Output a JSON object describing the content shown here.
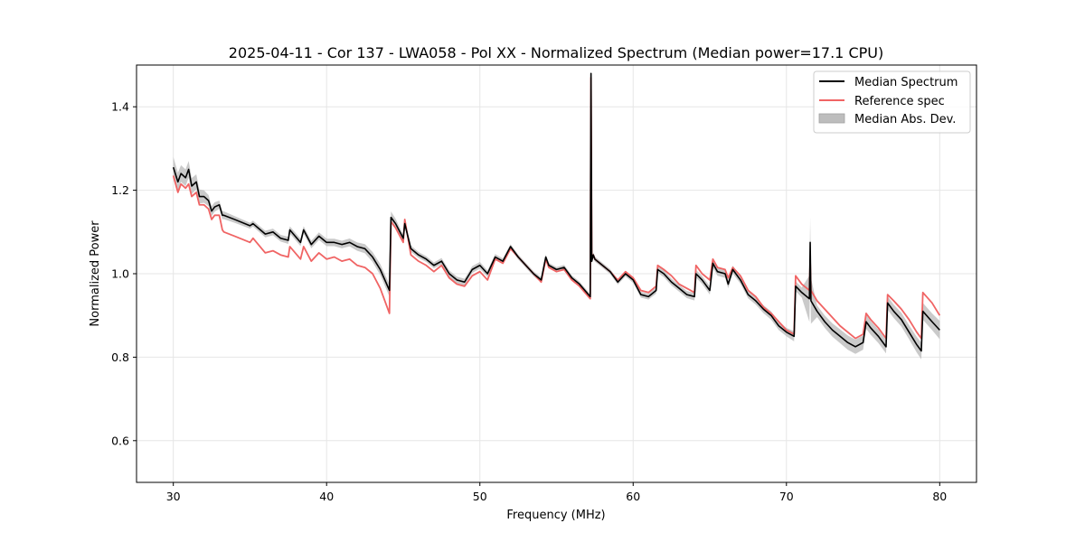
{
  "chart_data": {
    "type": "line",
    "title": "2025-04-11 - Cor 137 - LWA058 - Pol XX - Normalized Spectrum (Median power=17.1 CPU)",
    "xlabel": "Frequency (MHz)",
    "ylabel": "Normalized Power",
    "xlim": [
      27.6,
      82.4
    ],
    "ylim": [
      0.5,
      1.5
    ],
    "grid": true,
    "legend_position": "top-right",
    "x_ticks": [
      30,
      40,
      50,
      60,
      70,
      80
    ],
    "y_ticks": [
      0.6,
      0.8,
      1.0,
      1.2,
      1.4
    ],
    "x_tick_labels": [
      "30",
      "40",
      "50",
      "60",
      "70",
      "80"
    ],
    "y_tick_labels": [
      "0.6",
      "0.8",
      "1.0",
      "1.2",
      "1.4"
    ],
    "colors": {
      "median": "#000000",
      "reference": "#f06464",
      "mad_fill": "#bdbdbd",
      "grid": "#e6e6e6"
    },
    "legend": [
      {
        "label": "Median Spectrum",
        "kind": "line",
        "series": "median"
      },
      {
        "label": "Reference spec",
        "kind": "line",
        "series": "reference"
      },
      {
        "label": "Median Abs. Dev.",
        "kind": "patch",
        "series": "mad"
      }
    ],
    "series": [
      {
        "name": "Median Spectrum",
        "key": "median",
        "x": [
          30.0,
          30.3,
          30.5,
          30.8,
          31.0,
          31.2,
          31.5,
          31.7,
          32.0,
          32.3,
          32.5,
          32.7,
          33.0,
          33.2,
          33.3,
          34.0,
          35.0,
          35.2,
          36.0,
          36.5,
          37.0,
          37.5,
          37.6,
          38.3,
          38.5,
          39.0,
          39.5,
          40.0,
          40.5,
          41.0,
          41.5,
          42.0,
          42.5,
          43.0,
          43.5,
          44.1,
          44.2,
          44.5,
          45.0,
          45.1,
          45.5,
          46.0,
          46.5,
          47.0,
          47.5,
          48.0,
          48.5,
          49.0,
          49.5,
          50.0,
          50.5,
          51.0,
          51.5,
          52.0,
          52.5,
          53.0,
          53.5,
          54.0,
          54.3,
          54.5,
          55.0,
          55.5,
          56.0,
          56.5,
          57.2,
          57.25,
          57.3,
          57.4,
          57.5,
          58.0,
          58.5,
          59.0,
          59.5,
          60.0,
          60.5,
          61.0,
          61.5,
          61.6,
          62.0,
          62.5,
          63.0,
          63.5,
          64.0,
          64.1,
          64.5,
          65.0,
          65.2,
          65.5,
          66.0,
          66.2,
          66.5,
          67.0,
          67.5,
          68.0,
          68.5,
          69.0,
          69.5,
          70.0,
          70.5,
          70.6,
          71.0,
          71.5,
          71.55,
          71.6,
          72.0,
          72.5,
          73.0,
          73.5,
          74.0,
          74.5,
          75.0,
          75.2,
          75.5,
          76.0,
          76.5,
          76.6,
          77.0,
          77.5,
          78.0,
          78.5,
          78.8,
          78.9,
          79.5,
          80.0
        ],
        "y": [
          1.255,
          1.22,
          1.24,
          1.23,
          1.25,
          1.21,
          1.22,
          1.185,
          1.185,
          1.175,
          1.15,
          1.16,
          1.165,
          1.14,
          1.14,
          1.13,
          1.115,
          1.12,
          1.095,
          1.1,
          1.085,
          1.08,
          1.105,
          1.075,
          1.105,
          1.07,
          1.09,
          1.075,
          1.075,
          1.07,
          1.075,
          1.065,
          1.06,
          1.04,
          1.01,
          0.96,
          1.135,
          1.12,
          1.085,
          1.12,
          1.06,
          1.045,
          1.035,
          1.02,
          1.03,
          1.0,
          0.985,
          0.98,
          1.01,
          1.02,
          1.0,
          1.04,
          1.03,
          1.065,
          1.04,
          1.02,
          1.0,
          0.985,
          1.04,
          1.02,
          1.01,
          1.015,
          0.99,
          0.975,
          0.945,
          1.48,
          1.03,
          1.045,
          1.035,
          1.02,
          1.005,
          0.98,
          1.0,
          0.985,
          0.95,
          0.945,
          0.96,
          1.01,
          1.0,
          0.98,
          0.965,
          0.95,
          0.945,
          1.0,
          0.985,
          0.96,
          1.025,
          1.005,
          1.0,
          0.975,
          1.01,
          0.985,
          0.95,
          0.935,
          0.915,
          0.9,
          0.875,
          0.86,
          0.85,
          0.97,
          0.955,
          0.94,
          1.075,
          0.935,
          0.91,
          0.885,
          0.865,
          0.85,
          0.835,
          0.825,
          0.835,
          0.885,
          0.87,
          0.85,
          0.825,
          0.93,
          0.91,
          0.89,
          0.86,
          0.83,
          0.815,
          0.91,
          0.885,
          0.865
        ]
      },
      {
        "name": "Reference spec",
        "key": "reference",
        "x": [
          30.0,
          30.3,
          30.5,
          30.8,
          31.0,
          31.2,
          31.5,
          31.7,
          32.0,
          32.3,
          32.5,
          32.7,
          33.0,
          33.2,
          33.3,
          34.0,
          35.0,
          35.2,
          36.0,
          36.5,
          37.0,
          37.5,
          37.6,
          38.3,
          38.5,
          39.0,
          39.5,
          40.0,
          40.5,
          41.0,
          41.5,
          42.0,
          42.5,
          43.0,
          43.5,
          44.1,
          44.2,
          44.5,
          45.0,
          45.1,
          45.5,
          46.0,
          46.5,
          47.0,
          47.5,
          48.0,
          48.5,
          49.0,
          49.5,
          50.0,
          50.5,
          51.0,
          51.5,
          52.0,
          52.5,
          53.0,
          53.5,
          54.0,
          54.3,
          54.5,
          55.0,
          55.5,
          56.0,
          56.5,
          57.2,
          57.25,
          57.3,
          57.4,
          57.5,
          58.0,
          58.5,
          59.0,
          59.5,
          60.0,
          60.5,
          61.0,
          61.5,
          61.6,
          62.0,
          62.5,
          63.0,
          63.5,
          64.0,
          64.1,
          64.5,
          65.0,
          65.2,
          65.5,
          66.0,
          66.2,
          66.5,
          67.0,
          67.5,
          68.0,
          68.5,
          69.0,
          69.5,
          70.0,
          70.5,
          70.6,
          71.0,
          71.5,
          71.55,
          71.6,
          72.0,
          72.5,
          73.0,
          73.5,
          74.0,
          74.5,
          75.0,
          75.2,
          75.5,
          76.0,
          76.5,
          76.6,
          77.0,
          77.5,
          78.0,
          78.5,
          78.8,
          78.9,
          79.5,
          80.0
        ],
        "y": [
          1.235,
          1.195,
          1.215,
          1.205,
          1.215,
          1.185,
          1.195,
          1.165,
          1.165,
          1.155,
          1.13,
          1.14,
          1.14,
          1.105,
          1.1,
          1.09,
          1.075,
          1.085,
          1.05,
          1.055,
          1.045,
          1.04,
          1.065,
          1.035,
          1.065,
          1.03,
          1.05,
          1.035,
          1.04,
          1.03,
          1.035,
          1.02,
          1.015,
          1.0,
          0.965,
          0.905,
          1.125,
          1.11,
          1.075,
          1.13,
          1.045,
          1.03,
          1.02,
          1.005,
          1.02,
          0.99,
          0.975,
          0.97,
          0.995,
          1.005,
          0.985,
          1.035,
          1.025,
          1.06,
          1.04,
          1.02,
          1.0,
          0.98,
          1.035,
          1.015,
          1.005,
          1.01,
          0.985,
          0.97,
          0.94,
          1.47,
          1.035,
          1.045,
          1.035,
          1.02,
          1.005,
          0.985,
          1.005,
          0.99,
          0.96,
          0.955,
          0.97,
          1.02,
          1.01,
          0.995,
          0.975,
          0.965,
          0.955,
          1.02,
          1.0,
          0.985,
          1.035,
          1.015,
          1.01,
          0.99,
          1.015,
          0.995,
          0.96,
          0.945,
          0.92,
          0.905,
          0.885,
          0.865,
          0.855,
          0.995,
          0.975,
          0.96,
          1.03,
          0.96,
          0.935,
          0.915,
          0.895,
          0.875,
          0.86,
          0.845,
          0.855,
          0.905,
          0.89,
          0.87,
          0.845,
          0.95,
          0.935,
          0.915,
          0.89,
          0.86,
          0.845,
          0.955,
          0.93,
          0.9
        ]
      },
      {
        "name": "Median Abs. Dev.",
        "key": "mad",
        "x": [
          30.0,
          30.5,
          31.0,
          31.5,
          32.0,
          32.5,
          33.0,
          34.0,
          35.0,
          36.0,
          37.0,
          38.0,
          39.0,
          40.0,
          41.0,
          42.0,
          43.0,
          44.1,
          45.0,
          46.0,
          47.0,
          48.0,
          49.0,
          50.0,
          51.0,
          52.0,
          53.0,
          54.0,
          55.0,
          56.0,
          57.2,
          57.25,
          57.3,
          58.0,
          59.0,
          60.0,
          61.0,
          62.0,
          63.0,
          64.0,
          65.0,
          66.0,
          67.0,
          68.0,
          69.0,
          70.0,
          70.5,
          71.0,
          71.55,
          72.0,
          73.0,
          74.0,
          75.0,
          76.0,
          77.0,
          78.0,
          78.8,
          79.5,
          80.0
        ],
        "dev": [
          0.025,
          0.02,
          0.02,
          0.018,
          0.015,
          0.012,
          0.01,
          0.008,
          0.007,
          0.008,
          0.008,
          0.009,
          0.009,
          0.009,
          0.009,
          0.01,
          0.012,
          0.015,
          0.008,
          0.007,
          0.007,
          0.008,
          0.008,
          0.008,
          0.007,
          0.006,
          0.006,
          0.006,
          0.006,
          0.006,
          0.006,
          0.01,
          0.006,
          0.006,
          0.006,
          0.007,
          0.007,
          0.008,
          0.008,
          0.009,
          0.01,
          0.01,
          0.009,
          0.009,
          0.01,
          0.01,
          0.012,
          0.012,
          0.06,
          0.014,
          0.016,
          0.017,
          0.017,
          0.016,
          0.016,
          0.017,
          0.02,
          0.02,
          0.022
        ]
      }
    ]
  }
}
